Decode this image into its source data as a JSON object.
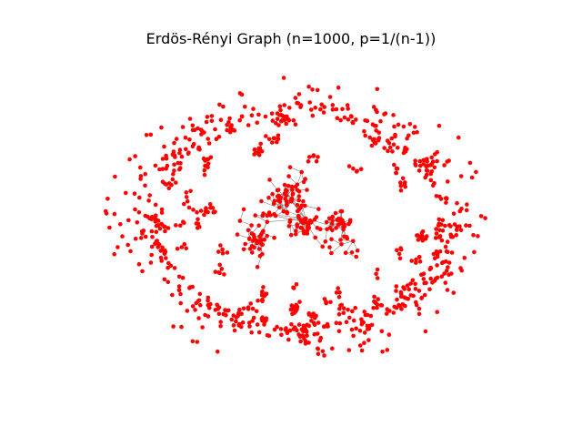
{
  "figure": {
    "title": "Erdös-Rényi Graph (n=1000, p=1/(n-1))"
  },
  "graph": {
    "node_count": 1000,
    "node_color": "#ff0000",
    "edge_color": "#808080",
    "background": "#ffffff"
  }
}
